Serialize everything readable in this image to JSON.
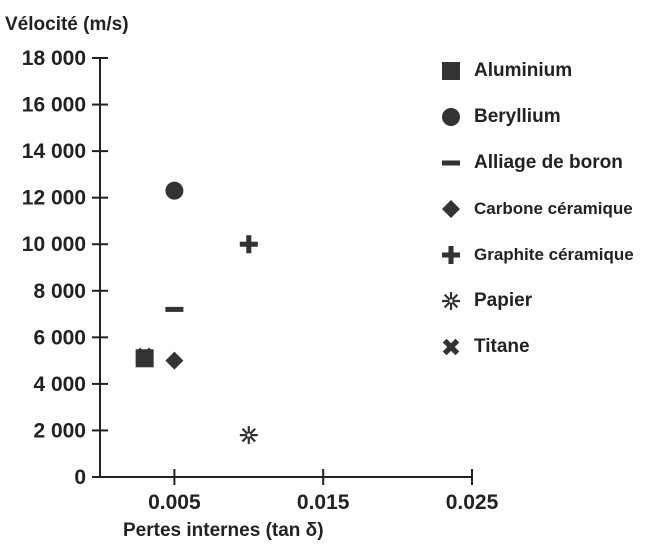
{
  "chart_data": {
    "type": "scatter",
    "ylabel": "Vélocité (m/s)",
    "xlabel": "Pertes internes (tan δ)",
    "xlim": [
      0,
      0.025
    ],
    "ylim": [
      0,
      18000
    ],
    "x_ticks": [
      0.005,
      0.015,
      0.025
    ],
    "x_tick_labels": [
      "0.005",
      "0.015",
      "0.025"
    ],
    "y_ticks": [
      0,
      2000,
      4000,
      6000,
      8000,
      10000,
      12000,
      14000,
      16000,
      18000
    ],
    "y_tick_labels": [
      "0",
      "2 000",
      "4 000",
      "6 000",
      "8 000",
      "10 000",
      "12 000",
      "14 000",
      "16 000",
      "18 000"
    ],
    "series": [
      {
        "name": "Aluminium",
        "marker": "square",
        "x": 0.003,
        "y": 5100
      },
      {
        "name": "Beryllium",
        "marker": "circle",
        "x": 0.005,
        "y": 12300
      },
      {
        "name": "Alliage de boron",
        "marker": "dash",
        "x": 0.005,
        "y": 7200
      },
      {
        "name": "Carbone céramique",
        "marker": "diamond",
        "x": 0.005,
        "y": 5000
      },
      {
        "name": "Graphite céramique",
        "marker": "plus",
        "x": 0.01,
        "y": 10000
      },
      {
        "name": "Papier",
        "marker": "asterisk",
        "x": 0.01,
        "y": 1800
      },
      {
        "name": "Titane",
        "marker": "cross",
        "x": 0.003,
        "y": 5200
      }
    ],
    "legend_position": "right",
    "grid": false,
    "marker_color": "#333333"
  }
}
